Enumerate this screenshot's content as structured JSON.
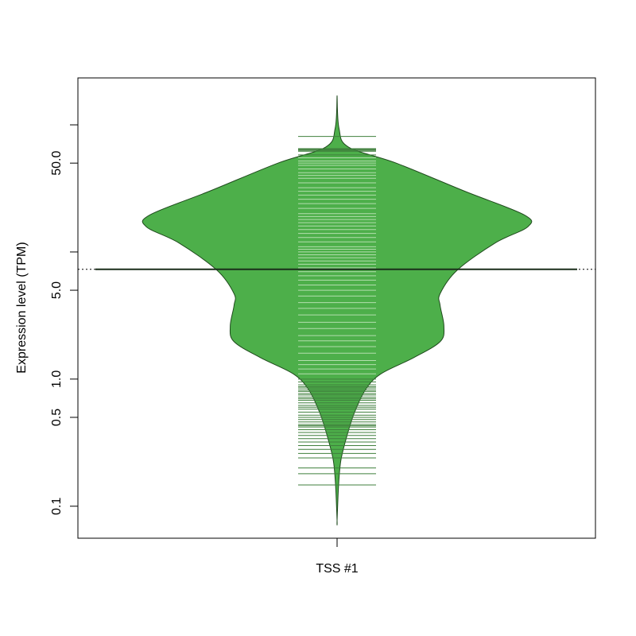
{
  "chart_data": {
    "type": "beanplot",
    "ylabel": "Expression level (TPM)",
    "categories": [
      "TSS #1"
    ],
    "log_y": true,
    "ylim": [
      0.056,
      234
    ],
    "yticks": [
      0.1,
      0.5,
      {
        "value": 1,
        "label": "1.0"
      },
      {
        "value": 5,
        "label": "5.0"
      },
      {
        "value": 50,
        "label": "50.0"
      }
    ],
    "yminorticks": [
      10,
      100
    ],
    "color": "#4daf4a",
    "outline_color": "#1f4a1d",
    "bean_line_color": "#b3deae",
    "bean_line_outside_color": "#3f7f3c",
    "median": 7.3,
    "overall_mean": 7.3,
    "density": {
      "y": [
        170,
        94,
        66.8,
        50,
        30,
        19.6,
        15.8,
        11.8,
        7.2,
        4.7,
        3.8,
        2.6,
        1.97,
        1.47,
        1.1,
        0.83,
        0.54,
        0.35,
        0.23,
        0.147,
        0.077
      ],
      "width": [
        0,
        0.01,
        0.06,
        0.31,
        0.67,
        0.98,
        1,
        0.83,
        0.63,
        0.54,
        0.54,
        0.56,
        0.54,
        0.4,
        0.23,
        0.15,
        0.09,
        0.05,
        0.02,
        0.008,
        0
      ]
    },
    "beans": [
      81,
      65,
      64,
      63,
      62,
      58,
      55,
      52,
      50,
      48,
      45,
      42,
      40,
      38,
      35,
      32,
      30,
      28,
      26,
      24,
      22,
      20,
      19,
      18,
      17,
      16,
      15,
      14,
      13,
      12,
      11,
      10.5,
      10,
      9.5,
      9,
      8.5,
      8,
      7.5,
      7,
      6.5,
      6,
      5.5,
      5,
      4.5,
      4,
      3.6,
      3.2,
      2.8,
      2.5,
      2.2,
      2,
      1.8,
      1.6,
      1.4,
      1.3,
      1.2,
      1.1,
      1.0,
      0.95,
      0.9,
      0.87,
      0.85,
      0.82,
      0.8,
      0.77,
      0.75,
      0.72,
      0.7,
      0.68,
      0.65,
      0.62,
      0.6,
      0.58,
      0.55,
      0.52,
      0.5,
      0.48,
      0.46,
      0.44,
      0.43,
      0.42,
      0.4,
      0.38,
      0.36,
      0.34,
      0.32,
      0.3,
      0.28,
      0.26,
      0.24,
      0.2,
      0.18,
      0.147
    ]
  }
}
